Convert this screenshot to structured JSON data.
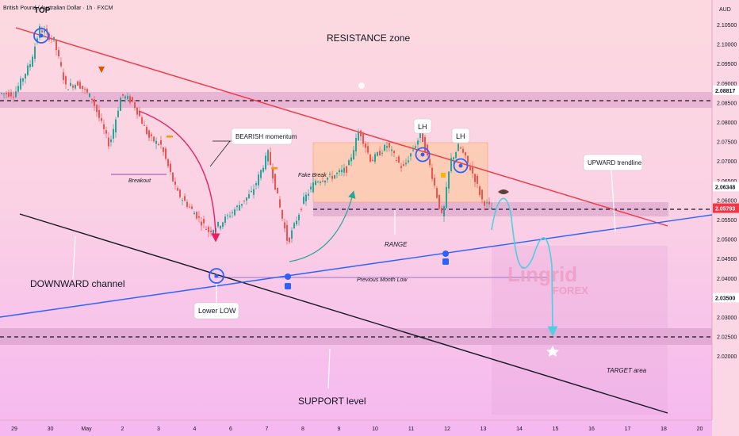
{
  "header": {
    "symbol": "British Pound / Australian Dollar · 1h · FXCM",
    "currency": "AUD"
  },
  "chart_data": {
    "type": "candlestick",
    "price_ticks": [
      "2.10500",
      "2.10000",
      "2.09500",
      "2.09000",
      "2.08500",
      "2.08000",
      "2.07500",
      "2.07000",
      "2.06500",
      "2.06000",
      "2.05500",
      "2.05000",
      "2.04500",
      "2.04000",
      "2.03500",
      "2.03000",
      "2.02500",
      "2.02000"
    ],
    "date_ticks": [
      "29",
      "30",
      "May",
      "2",
      "3",
      "4",
      "6",
      "7",
      "8",
      "9",
      "10",
      "11",
      "12",
      "13",
      "14",
      "15",
      "16",
      "17",
      "18",
      "20"
    ],
    "price_labels": [
      {
        "name": "level-high",
        "value": "2.08817",
        "price": 2.08817,
        "bg": "#ffffff",
        "fg": "#131722"
      },
      {
        "name": "level-mid",
        "value": "2.06348",
        "price": 2.06348,
        "bg": "#ffffff",
        "fg": "#131722"
      },
      {
        "name": "current",
        "value": "2.05793",
        "price": 2.05793,
        "bg": "#f23645",
        "fg": "#ffffff"
      },
      {
        "name": "level-low",
        "value": "2.03500",
        "price": 2.035,
        "bg": "#ffffff",
        "fg": "#131722"
      }
    ],
    "annotations": {
      "top": "TOP",
      "resistance": "RESISTANCE zone",
      "bearish": "BEARISH momentum",
      "breakout": "Breakout",
      "fake_break": "Fake Break",
      "lh1": "LH",
      "lh2": "LH",
      "upward": "UPWARD trendline",
      "range": "RANGE",
      "downward": "DOWNWARD channel",
      "prev_month_low": "Previous Month Low",
      "lower_low": "Lower LOW",
      "support": "SUPPORT level",
      "target": "TARGET area"
    },
    "watermark": {
      "line1": "Lingrid",
      "line2": "FOREX"
    },
    "colors": {
      "bull": "#26a69a",
      "bear": "#ef5350",
      "resistance_line": "#f23645",
      "support_line": "#131722",
      "uptrend": "#2962ff",
      "projection": "#4dd0e1",
      "marker": "#2962ff"
    }
  }
}
